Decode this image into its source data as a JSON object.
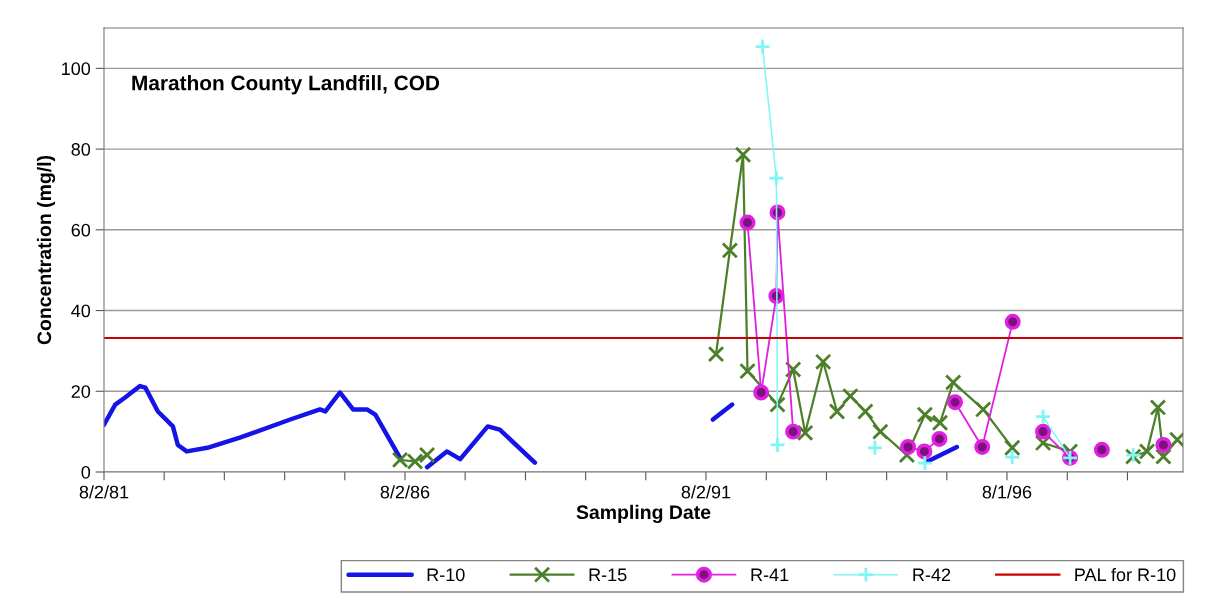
{
  "chart_data": {
    "type": "line",
    "title": "Marathon County Landfill, COD",
    "xlabel": "Sampling Date",
    "ylabel": "Concentration (mg/l)",
    "xlim": [
      "1981-08-02",
      "1999-07-05"
    ],
    "ylim": [
      0,
      110
    ],
    "xticks": [
      {
        "value": "1981-08-02",
        "label": "8/2/81"
      },
      {
        "value": "1982-08-02",
        "label": null
      },
      {
        "value": "1983-08-02",
        "label": null
      },
      {
        "value": "1984-08-02",
        "label": null
      },
      {
        "value": "1985-08-02",
        "label": null
      },
      {
        "value": "1986-08-02",
        "label": "8/2/86"
      },
      {
        "value": "1987-08-02",
        "label": null
      },
      {
        "value": "1988-08-02",
        "label": null
      },
      {
        "value": "1989-08-02",
        "label": null
      },
      {
        "value": "1990-08-02",
        "label": null
      },
      {
        "value": "1991-08-02",
        "label": "8/2/91"
      },
      {
        "value": "1992-08-02",
        "label": null
      },
      {
        "value": "1993-08-02",
        "label": null
      },
      {
        "value": "1994-08-02",
        "label": null
      },
      {
        "value": "1995-08-02",
        "label": null
      },
      {
        "value": "1996-08-01",
        "label": "8/1/96"
      },
      {
        "value": "1997-08-02",
        "label": null
      },
      {
        "value": "1998-08-02",
        "label": null
      }
    ],
    "yticks": [
      0,
      20,
      40,
      60,
      80,
      100
    ],
    "grid": "y",
    "legend": "bottom",
    "line_style": "solid",
    "series": [
      {
        "name": "R-10",
        "color": "#1414e6",
        "marker": "none",
        "x": [
          "1981-08-02",
          "1981-10-09",
          "1981-12-06",
          "1982-03-08",
          "1982-04-10",
          "1982-06-25",
          "1982-09-24",
          "1982-10-24",
          "1982-12-17",
          "1983-04-21",
          "1983-11-04",
          "1984-09-05",
          "1985-03-04",
          "1985-04-06",
          "1985-07-03",
          "1985-09-21",
          "1985-12-14",
          "1986-02-03",
          "1986-07-03",
          "1986-09-13",
          "1986-12-14",
          "1987-04-13",
          "1987-07-03",
          "1987-12-17",
          "1988-02-28",
          "1988-09-28",
          "1990-01-01",
          "1991-09-13",
          "1992-01-08",
          "1994-01-01",
          "1995-04-06",
          "1995-10-02"
        ],
        "values": [
          11.7,
          16.7,
          18.4,
          21.3,
          20.9,
          15.0,
          11.3,
          6.7,
          5.1,
          6.0,
          8.5,
          13,
          15.5,
          15.0,
          19.7,
          15.5,
          15.5,
          14.2,
          3.5,
          null,
          1.2,
          5.1,
          3.2,
          11.3,
          10.5,
          2.3,
          null,
          13.0,
          16.7,
          null,
          2.6,
          6.2
        ]
      },
      {
        "name": "R-15",
        "color": "#4b7f2a",
        "marker": "cross",
        "x": [
          "1986-07-03",
          "1986-10-02",
          "1986-12-14",
          "1989-01-01",
          "1991-10-02",
          "1991-12-25",
          "1992-03-14",
          "1992-04-10",
          "1992-10-09",
          "1993-01-12",
          "1993-03-26",
          "1993-07-13",
          "1993-10-05",
          "1993-12-25",
          "1994-03-26",
          "1994-06-25",
          "1994-12-03",
          "1995-03-22",
          "1995-06-22",
          "1995-09-10",
          "1996-03-10",
          "1996-09-02",
          "1996-11-25",
          "1997-03-08",
          "1997-08-19",
          "1998-03-14",
          "1998-09-06",
          "1998-11-29",
          "1999-02-03",
          "1999-03-08",
          "1999-05-31"
        ],
        "values": [
          3.0,
          2.6,
          4.2,
          null,
          29.2,
          54.9,
          78.6,
          25.0,
          16.7,
          25.4,
          9.7,
          27.3,
          15.0,
          18.8,
          15.0,
          10.0,
          4.2,
          14.2,
          12.2,
          22.2,
          15.5,
          6.0,
          null,
          7.2,
          5.1,
          null,
          3.8,
          5.1,
          16.0,
          3.8,
          8.0
        ]
      },
      {
        "name": "R-41",
        "color": "#e020e0",
        "marker": "circle",
        "x": [
          "1992-04-10",
          "1992-07-02",
          "1992-10-02",
          "1992-10-09",
          "1993-01-12",
          "1994-01-01",
          "1994-12-10",
          "1995-03-19",
          "1995-06-18",
          "1995-08-08",
          "1995-09-21",
          "1996-03-04",
          "1996-09-05",
          "1996-11-25",
          "1997-03-08",
          "1997-08-19",
          "1997-11-25",
          "1998-02-28",
          "1998-09-13",
          "1999-03-08"
        ],
        "values": [
          61.8,
          19.7,
          43.6,
          64.3,
          10.0,
          null,
          6.2,
          5.1,
          8.2,
          null,
          17.3,
          6.2,
          37.2,
          null,
          10.0,
          3.5,
          null,
          5.5,
          null,
          6.7
        ]
      },
      {
        "name": "R-42",
        "color": "#7ff5f5",
        "marker": "plus",
        "x": [
          "1992-07-10",
          "1992-10-02",
          "1992-10-09",
          "1993-07-02",
          "1994-05-23",
          "1994-10-20",
          "1995-03-22",
          "1996-01-01",
          "1996-09-02",
          "1996-11-25",
          "1997-03-08",
          "1997-08-19",
          "1998-03-14",
          "1998-09-06"
        ],
        "values": [
          105.4,
          72.8,
          6.7,
          null,
          6.0,
          null,
          2.2,
          null,
          3.7,
          null,
          13.7,
          3.5,
          null,
          4.2
        ]
      }
    ],
    "ref_lines": [
      {
        "axis": "y",
        "value": 33.2,
        "label": "PAL for R-10",
        "color": "#cc0000",
        "line_style": "solid"
      }
    ]
  }
}
